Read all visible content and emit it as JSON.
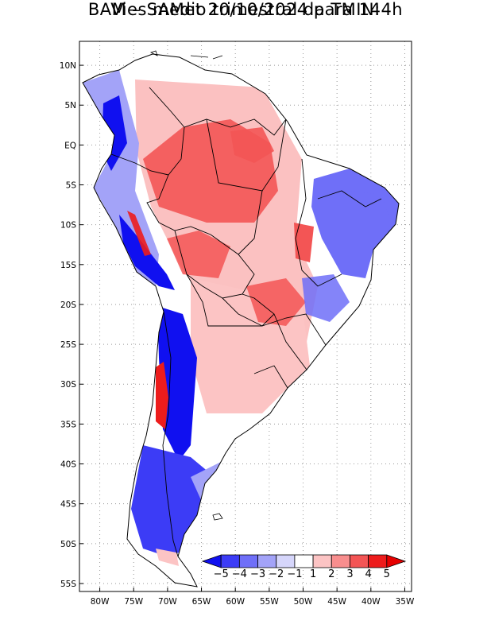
{
  "title": {
    "line1": "Vies medio trimestral da TMIN:",
    "line2": "BAM – SAMet 20/10/2024  para 144h"
  },
  "map": {
    "lon_range": [
      -83,
      -34
    ],
    "lat_range": [
      -56,
      13
    ],
    "y_ticks": [
      {
        "lat": 10,
        "label": "10N"
      },
      {
        "lat": 5,
        "label": "5N"
      },
      {
        "lat": 0,
        "label": "EQ"
      },
      {
        "lat": -5,
        "label": "5S"
      },
      {
        "lat": -10,
        "label": "10S"
      },
      {
        "lat": -15,
        "label": "15S"
      },
      {
        "lat": -20,
        "label": "20S"
      },
      {
        "lat": -25,
        "label": "25S"
      },
      {
        "lat": -30,
        "label": "30S"
      },
      {
        "lat": -35,
        "label": "35S"
      },
      {
        "lat": -40,
        "label": "40S"
      },
      {
        "lat": -45,
        "label": "45S"
      },
      {
        "lat": -50,
        "label": "50S"
      },
      {
        "lat": -55,
        "label": "55S"
      }
    ],
    "x_ticks": [
      {
        "lon": -80,
        "label": "80W"
      },
      {
        "lon": -75,
        "label": "75W"
      },
      {
        "lon": -70,
        "label": "70W"
      },
      {
        "lon": -65,
        "label": "65W"
      },
      {
        "lon": -60,
        "label": "60W"
      },
      {
        "lon": -55,
        "label": "55W"
      },
      {
        "lon": -50,
        "label": "50W"
      },
      {
        "lon": -45,
        "label": "45W"
      },
      {
        "lon": -40,
        "label": "40W"
      },
      {
        "lon": -35,
        "label": "35W"
      }
    ],
    "grid": "dotted"
  },
  "colorbar": {
    "levels": [
      "−5",
      "−4",
      "−3",
      "−2",
      "−1",
      "1",
      "2",
      "3",
      "4",
      "5"
    ],
    "colors": [
      "#1010f0",
      "#3c3cf6",
      "#6f6ff8",
      "#a3a3f8",
      "#d6d6fb",
      "#ffffff",
      "#fcc4c4",
      "#f88e8e",
      "#f35555",
      "#ed1c1c",
      "#e60000"
    ]
  },
  "fields": {
    "north_warm": {
      "value": 3,
      "color": "#f35555"
    },
    "central_warm": {
      "value": 2,
      "color": "#f88e8e"
    },
    "south_warm": {
      "value": 1.5,
      "color": "#fcc4c4"
    },
    "andes_cold": {
      "value": -5,
      "color": "#1010f0"
    },
    "patagonia_cold": {
      "value": -3.5,
      "color": "#3c3cf6"
    },
    "northeast_cold": {
      "value": -2,
      "color": "#6f6ff8"
    },
    "coast_cold": {
      "value": -2,
      "color": "#a3a3f8"
    },
    "chile_warm_strip": {
      "value": 5,
      "color": "#ed1c1c"
    }
  }
}
